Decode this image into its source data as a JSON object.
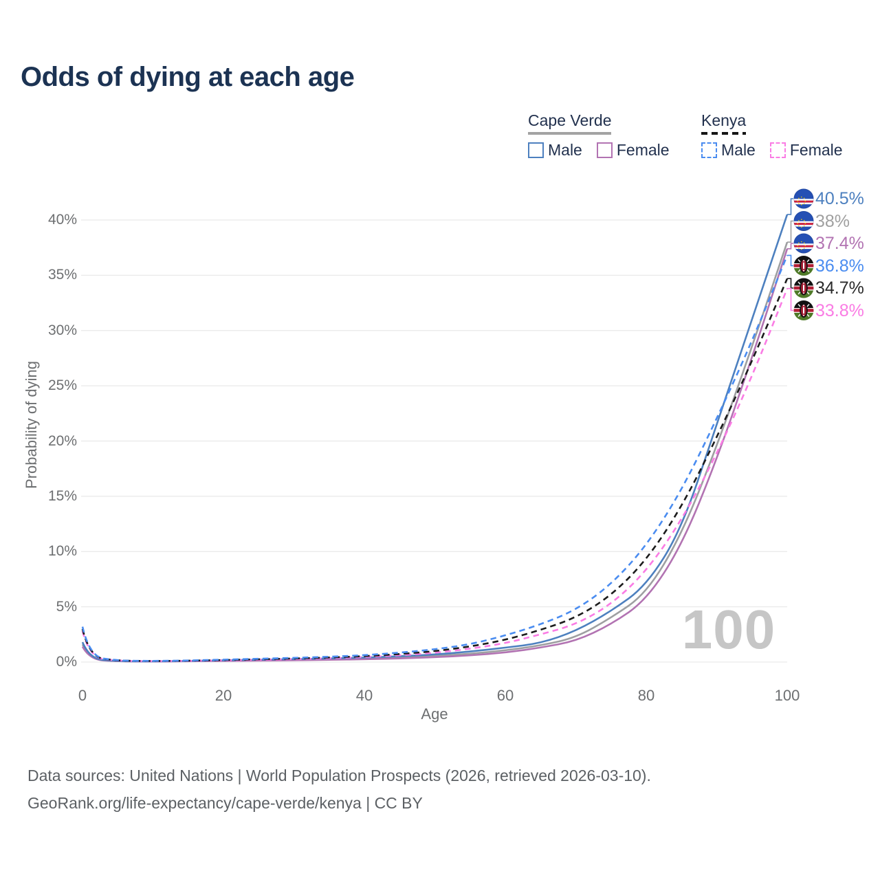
{
  "title": "Odds of dying at each age",
  "legend": {
    "groups": [
      {
        "country": "Cape Verde",
        "line_style": "solid",
        "underline_color": "#a3a3a3",
        "items": [
          {
            "label": "Male",
            "color": "#4d80bf"
          },
          {
            "label": "Female",
            "color": "#b273b2"
          }
        ]
      },
      {
        "country": "Kenya",
        "line_style": "dashed",
        "underline_color": "#161616",
        "items": [
          {
            "label": "Male",
            "color": "#4a8cf0"
          },
          {
            "label": "Female",
            "color": "#fa7ce4"
          }
        ]
      }
    ]
  },
  "axes": {
    "y_label": "Probability of dying",
    "x_label": "Age",
    "y_ticks": [
      {
        "label": "0%",
        "value": 0
      },
      {
        "label": "5%",
        "value": 5
      },
      {
        "label": "10%",
        "value": 10
      },
      {
        "label": "15%",
        "value": 15
      },
      {
        "label": "20%",
        "value": 20
      },
      {
        "label": "25%",
        "value": 25
      },
      {
        "label": "30%",
        "value": 30
      },
      {
        "label": "35%",
        "value": 35
      },
      {
        "label": "40%",
        "value": 40
      }
    ],
    "x_ticks": [
      {
        "label": "0",
        "value": 0
      },
      {
        "label": "20",
        "value": 20
      },
      {
        "label": "40",
        "value": 40
      },
      {
        "label": "60",
        "value": 60
      },
      {
        "label": "80",
        "value": 80
      },
      {
        "label": "100",
        "value": 100
      }
    ],
    "grid_color": "#e9e9e9"
  },
  "watermark": "100",
  "end_labels": [
    {
      "value": "40.5%",
      "color": "#4d80bf",
      "flag": "cape-verde"
    },
    {
      "value": "38%",
      "color": "#a0a0a0",
      "flag": "cape-verde"
    },
    {
      "value": "37.4%",
      "color": "#b273b2",
      "flag": "cape-verde"
    },
    {
      "value": "36.8%",
      "color": "#4a8cf0",
      "flag": "kenya"
    },
    {
      "value": "34.7%",
      "color": "#2a2a2a",
      "flag": "kenya"
    },
    {
      "value": "33.8%",
      "color": "#fa7ce4",
      "flag": "kenya"
    }
  ],
  "footer": {
    "line1": "Data sources: United Nations | World Population Prospects (2026, retrieved 2026-03-10).",
    "line2": "GeoRank.org/life-expectancy/cape-verde/kenya | CC BY"
  },
  "chart_data": {
    "type": "line",
    "title": "Odds of dying at each age",
    "xlabel": "Age",
    "ylabel": "Probability of dying",
    "xlim": [
      0,
      100
    ],
    "ylim_percent": [
      0,
      42
    ],
    "grid": "horizontal",
    "legend_position": "top-right",
    "x": [
      0,
      1,
      5,
      10,
      15,
      20,
      25,
      30,
      35,
      40,
      45,
      50,
      55,
      60,
      65,
      70,
      75,
      80,
      85,
      90,
      95,
      100
    ],
    "series": [
      {
        "id": "cape-verde-male",
        "country": "Cape Verde",
        "sex": "Male",
        "color": "#4d80bf",
        "dashed": false,
        "end_value_percent": 40.5,
        "values": [
          1.8,
          0.28,
          0.08,
          0.06,
          0.1,
          0.16,
          0.21,
          0.26,
          0.32,
          0.4,
          0.52,
          0.68,
          0.95,
          1.3,
          1.7,
          2.8,
          4.6,
          6.9,
          12.0,
          21.5,
          31.0,
          40.5
        ]
      },
      {
        "id": "cape-verde-combined",
        "country": "Cape Verde",
        "sex": "",
        "color": "#9e9fa1",
        "dashed": false,
        "end_value_percent": 38,
        "values": [
          1.6,
          0.25,
          0.07,
          0.05,
          0.08,
          0.13,
          0.17,
          0.21,
          0.26,
          0.32,
          0.42,
          0.55,
          0.75,
          1.05,
          1.5,
          2.2,
          4.0,
          6.2,
          11.5,
          19.5,
          28.5,
          38.0
        ]
      },
      {
        "id": "cape-verde-female",
        "country": "Cape Verde",
        "sex": "Female",
        "color": "#b273b2",
        "dashed": false,
        "end_value_percent": 37.4,
        "values": [
          1.4,
          0.22,
          0.06,
          0.05,
          0.07,
          0.1,
          0.13,
          0.16,
          0.2,
          0.25,
          0.33,
          0.44,
          0.6,
          0.85,
          1.3,
          1.9,
          3.4,
          5.6,
          10.5,
          18.3,
          27.5,
          37.4
        ]
      },
      {
        "id": "kenya-male",
        "country": "Kenya",
        "sex": "Male",
        "color": "#4a8cf0",
        "dashed": true,
        "end_value_percent": 36.8,
        "values": [
          3.2,
          0.5,
          0.13,
          0.1,
          0.14,
          0.22,
          0.3,
          0.38,
          0.48,
          0.62,
          0.85,
          1.15,
          1.6,
          2.4,
          3.4,
          4.7,
          7.0,
          10.5,
          15.5,
          22.0,
          29.0,
          36.8
        ]
      },
      {
        "id": "kenya-combined",
        "country": "Kenya",
        "sex": "",
        "color": "#1c1c1c",
        "dashed": true,
        "end_value_percent": 34.7,
        "values": [
          3.0,
          0.46,
          0.12,
          0.09,
          0.12,
          0.18,
          0.25,
          0.32,
          0.41,
          0.53,
          0.72,
          0.98,
          1.4,
          2.0,
          2.9,
          4.0,
          6.0,
          9.2,
          14.0,
          20.3,
          27.2,
          34.7
        ]
      },
      {
        "id": "kenya-female",
        "country": "Kenya",
        "sex": "Female",
        "color": "#fa7ce4",
        "dashed": true,
        "end_value_percent": 33.8,
        "values": [
          2.8,
          0.42,
          0.11,
          0.08,
          0.11,
          0.15,
          0.2,
          0.26,
          0.34,
          0.45,
          0.61,
          0.83,
          1.2,
          1.7,
          2.5,
          3.4,
          5.2,
          8.2,
          12.8,
          18.8,
          25.8,
          33.8
        ]
      }
    ]
  }
}
